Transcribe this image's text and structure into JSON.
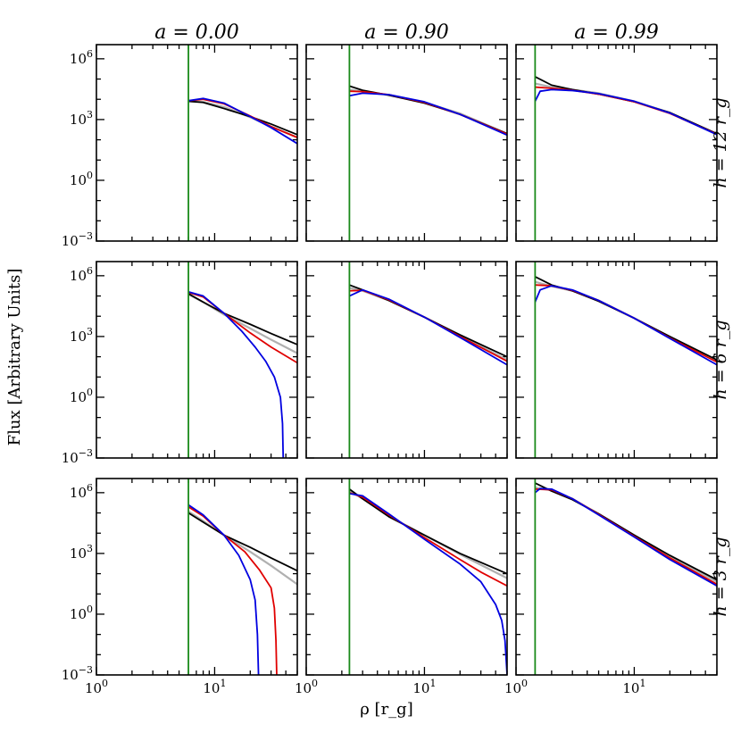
{
  "chart_data": {
    "type": "line",
    "ylabel": "Flux [Arbitrary Units]",
    "xlabel": "ρ [r_g]",
    "xscale": "log",
    "yscale": "log",
    "xlim": [
      1,
      50
    ],
    "ylim": [
      0.001,
      5000000
    ],
    "xticks": [
      {
        "base": "10",
        "exp": "0",
        "value": 1
      },
      {
        "base": "10",
        "exp": "1",
        "value": 10
      }
    ],
    "yticks": [
      {
        "base": "10",
        "exp": "−3",
        "value": 0.001
      },
      {
        "base": "10",
        "exp": "0",
        "value": 1
      },
      {
        "base": "10",
        "exp": "3",
        "value": 1000
      },
      {
        "base": "10",
        "exp": "6",
        "value": 1000000
      }
    ],
    "columns": [
      {
        "label": "a = 0.00",
        "spin": 0.0,
        "isco": 6.0
      },
      {
        "label": "a = 0.90",
        "spin": 0.9,
        "isco": 2.32
      },
      {
        "label": "a = 0.99",
        "spin": 0.99,
        "isco": 1.45
      }
    ],
    "rows": [
      {
        "label": "h = 12 r_g",
        "height": 12
      },
      {
        "label": "h = 6 r_g",
        "height": 6
      },
      {
        "label": "h = 3 r_g",
        "height": 3
      }
    ],
    "series_colors": {
      "black": "#000000",
      "gray": "#b0b0b0",
      "red": "#e00000",
      "blue": "#0000e0",
      "isco": "#1a8a1a"
    },
    "panels": [
      {
        "row": 0,
        "col": 0,
        "series": [
          {
            "color": "gray",
            "x": [
              6,
              8,
              12,
              20,
              30,
              50
            ],
            "y": [
              8000,
              7500,
              4200,
              1300,
              450,
              130
            ]
          },
          {
            "color": "black",
            "x": [
              6,
              8,
              12,
              20,
              30,
              50
            ],
            "y": [
              8000,
              7000,
              3500,
              1400,
              600,
              180
            ]
          },
          {
            "color": "red",
            "x": [
              6,
              8,
              12,
              20,
              30,
              50
            ],
            "y": [
              8500,
              10000,
              6000,
              1500,
              450,
              130
            ]
          },
          {
            "color": "blue",
            "x": [
              6,
              8,
              12,
              20,
              30,
              50
            ],
            "y": [
              8500,
              11000,
              6500,
              1400,
              400,
              65
            ]
          }
        ]
      },
      {
        "row": 0,
        "col": 1,
        "series": [
          {
            "color": "gray",
            "x": [
              2.32,
              3,
              5,
              10,
              20,
              50
            ],
            "y": [
              30000,
              24000,
              16000,
              7000,
              2000,
              200
            ]
          },
          {
            "color": "black",
            "x": [
              2.32,
              3,
              5,
              10,
              20,
              50
            ],
            "y": [
              45000,
              28000,
              16000,
              6500,
              1800,
              200
            ]
          },
          {
            "color": "red",
            "x": [
              2.32,
              3,
              5,
              10,
              20,
              50
            ],
            "y": [
              25000,
              24000,
              17000,
              7000,
              1800,
              190
            ]
          },
          {
            "color": "blue",
            "x": [
              2.32,
              3,
              5,
              10,
              20,
              50
            ],
            "y": [
              15000,
              20000,
              17000,
              7500,
              1800,
              170
            ]
          }
        ]
      },
      {
        "row": 0,
        "col": 2,
        "series": [
          {
            "color": "gray",
            "x": [
              1.45,
              2,
              3,
              5,
              10,
              20,
              50
            ],
            "y": [
              60000,
              40000,
              30000,
              20000,
              8000,
              2200,
              190
            ]
          },
          {
            "color": "black",
            "x": [
              1.45,
              2,
              3,
              5,
              10,
              20,
              50
            ],
            "y": [
              130000,
              50000,
              30000,
              18000,
              7500,
              2200,
              200
            ]
          },
          {
            "color": "red",
            "x": [
              1.45,
              2,
              3,
              5,
              10,
              20,
              50
            ],
            "y": [
              40000,
              35000,
              28000,
              18000,
              7500,
              2000,
              190
            ]
          },
          {
            "color": "blue",
            "x": [
              1.45,
              1.6,
              2,
              3,
              5,
              10,
              20,
              50
            ],
            "y": [
              8000,
              25000,
              30000,
              27000,
              19000,
              8000,
              2100,
              180
            ]
          }
        ]
      },
      {
        "row": 1,
        "col": 0,
        "series": [
          {
            "color": "gray",
            "x": [
              6,
              8,
              12,
              20,
              30,
              50
            ],
            "y": [
              120000,
              50000,
              12000,
              2500,
              700,
              150
            ]
          },
          {
            "color": "black",
            "x": [
              6,
              8,
              12,
              20,
              30,
              50
            ],
            "y": [
              130000,
              50000,
              14000,
              4000,
              1400,
              400
            ]
          },
          {
            "color": "red",
            "x": [
              6,
              8,
              12,
              20,
              30,
              50
            ],
            "y": [
              150000,
              90000,
              14000,
              1500,
              300,
              50
            ]
          },
          {
            "color": "blue",
            "x": [
              6,
              8,
              12,
              17,
              22,
              27,
              32,
              36,
              37.5,
              38
            ],
            "y": [
              160000,
              100000,
              14000,
              1800,
              300,
              60,
              10,
              1,
              0.05,
              0.001
            ]
          }
        ]
      },
      {
        "row": 1,
        "col": 1,
        "series": [
          {
            "color": "gray",
            "x": [
              2.32,
              3,
              5,
              10,
              20,
              50
            ],
            "y": [
              250000,
              180000,
              60000,
              9000,
              1100,
              70
            ]
          },
          {
            "color": "black",
            "x": [
              2.32,
              3,
              5,
              10,
              20,
              50
            ],
            "y": [
              350000,
              200000,
              60000,
              9000,
              1200,
              100
            ]
          },
          {
            "color": "red",
            "x": [
              2.32,
              3,
              5,
              10,
              20,
              50
            ],
            "y": [
              180000,
              190000,
              65000,
              9000,
              1000,
              60
            ]
          },
          {
            "color": "blue",
            "x": [
              2.32,
              3,
              5,
              10,
              20,
              50
            ],
            "y": [
              100000,
              200000,
              70000,
              9000,
              900,
              40
            ]
          }
        ]
      },
      {
        "row": 1,
        "col": 2,
        "series": [
          {
            "color": "gray",
            "x": [
              1.45,
              2,
              3,
              5,
              10,
              20,
              50
            ],
            "y": [
              500000,
              300000,
              180000,
              60000,
              8000,
              900,
              60
            ]
          },
          {
            "color": "black",
            "x": [
              1.45,
              2,
              3,
              5,
              10,
              20,
              50
            ],
            "y": [
              900000,
              350000,
              180000,
              55000,
              8000,
              1000,
              70
            ]
          },
          {
            "color": "red",
            "x": [
              1.45,
              2,
              3,
              5,
              10,
              20,
              50
            ],
            "y": [
              350000,
              320000,
              190000,
              60000,
              8000,
              850,
              55
            ]
          },
          {
            "color": "blue",
            "x": [
              1.45,
              1.6,
              2,
              3,
              5,
              10,
              20,
              50
            ],
            "y": [
              50000,
              200000,
              320000,
              200000,
              60000,
              8000,
              800,
              40
            ]
          }
        ]
      },
      {
        "row": 2,
        "col": 0,
        "series": [
          {
            "color": "gray",
            "x": [
              6,
              8,
              12,
              20,
              30,
              50
            ],
            "y": [
              120000,
              40000,
              8000,
              1200,
              250,
              30
            ]
          },
          {
            "color": "black",
            "x": [
              6,
              8,
              12,
              20,
              30,
              50
            ],
            "y": [
              100000,
              35000,
              8000,
              2000,
              600,
              140
            ]
          },
          {
            "color": "red",
            "x": [
              6,
              8,
              12,
              18,
              24,
              30,
              32,
              33,
              33.5
            ],
            "y": [
              200000,
              70000,
              8000,
              1200,
              150,
              20,
              2,
              0.05,
              0.001
            ]
          },
          {
            "color": "blue",
            "x": [
              6,
              8,
              12,
              16,
              20,
              22,
              23,
              23.5
            ],
            "y": [
              250000,
              80000,
              8000,
              800,
              50,
              5,
              0.1,
              0.001
            ]
          }
        ]
      },
      {
        "row": 2,
        "col": 1,
        "series": [
          {
            "color": "gray",
            "x": [
              2.32,
              3,
              5,
              10,
              20,
              50
            ],
            "y": [
              1300000,
              500000,
              70000,
              8000,
              900,
              60
            ]
          },
          {
            "color": "black",
            "x": [
              2.32,
              3,
              5,
              10,
              20,
              50
            ],
            "y": [
              1500000,
              500000,
              65000,
              8000,
              1000,
              100
            ]
          },
          {
            "color": "red",
            "x": [
              2.32,
              3,
              5,
              10,
              20,
              30,
              50
            ],
            "y": [
              1000000,
              600000,
              80000,
              6000,
              500,
              120,
              25
            ]
          },
          {
            "color": "blue",
            "x": [
              2.32,
              3,
              5,
              10,
              20,
              30,
              40,
              45,
              48,
              50
            ],
            "y": [
              900000,
              700000,
              90000,
              5000,
              300,
              40,
              3,
              0.5,
              0.05,
              0.001
            ]
          }
        ]
      },
      {
        "row": 2,
        "col": 2,
        "series": [
          {
            "color": "gray",
            "x": [
              1.45,
              2,
              3,
              5,
              10,
              20,
              50
            ],
            "y": [
              1800000,
              1300000,
              500000,
              90000,
              8000,
              700,
              40
            ]
          },
          {
            "color": "black",
            "x": [
              1.45,
              2,
              3,
              5,
              10,
              20,
              50
            ],
            "y": [
              3000000,
              1200000,
              450000,
              90000,
              8000,
              800,
              50
            ]
          },
          {
            "color": "red",
            "x": [
              1.45,
              2,
              3,
              5,
              10,
              20,
              50
            ],
            "y": [
              1500000,
              1400000,
              500000,
              85000,
              7000,
              600,
              30
            ]
          },
          {
            "color": "blue",
            "x": [
              1.45,
              1.6,
              2,
              3,
              5,
              10,
              20,
              50
            ],
            "y": [
              1000000,
              1600000,
              1500000,
              500000,
              80000,
              6500,
              500,
              25
            ]
          }
        ]
      }
    ]
  }
}
